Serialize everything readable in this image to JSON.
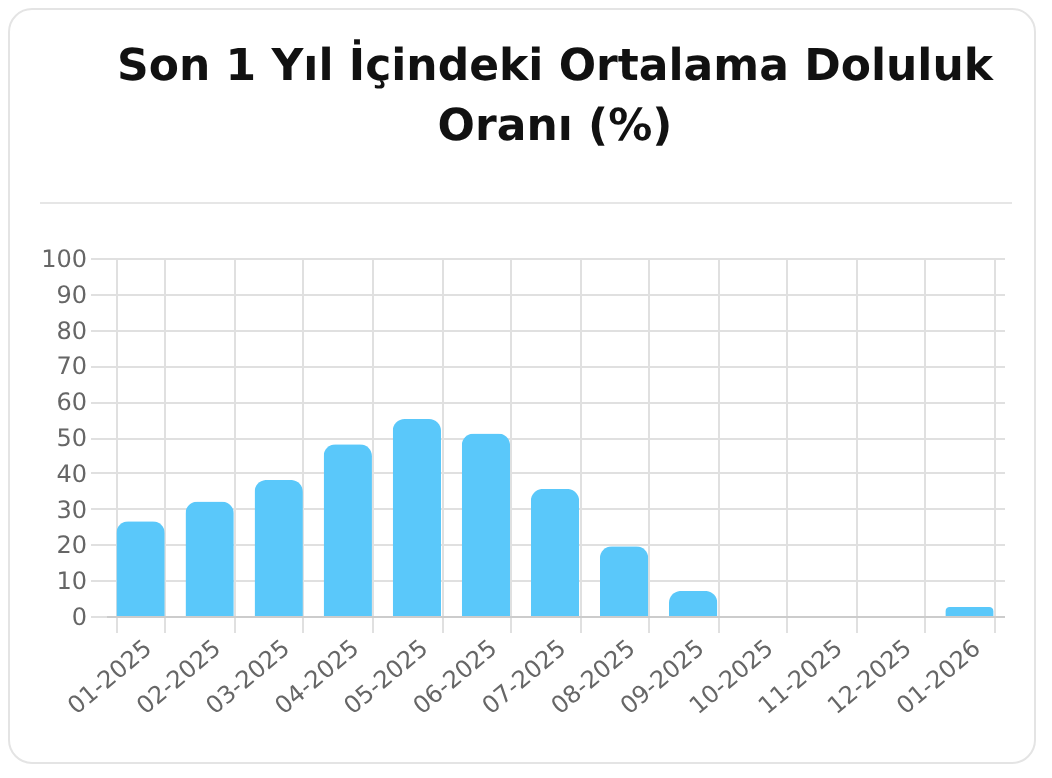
{
  "chart_data": {
    "type": "bar",
    "title": "Son 1 Yıl İçindeki Ortalama Doluluk Oranı (%)",
    "categories": [
      "01-2025",
      "02-2025",
      "03-2025",
      "04-2025",
      "05-2025",
      "06-2025",
      "07-2025",
      "08-2025",
      "09-2025",
      "10-2025",
      "11-2025",
      "12-2025",
      "01-2026"
    ],
    "values": [
      26.5,
      32,
      38,
      48,
      55,
      51,
      35.5,
      19.5,
      7,
      0,
      0,
      0,
      2.5
    ],
    "color": "#5ac8fa",
    "ylim": [
      0,
      100
    ],
    "yticks": [
      0,
      10,
      20,
      30,
      40,
      50,
      60,
      70,
      80,
      90,
      100
    ],
    "grid": true
  }
}
